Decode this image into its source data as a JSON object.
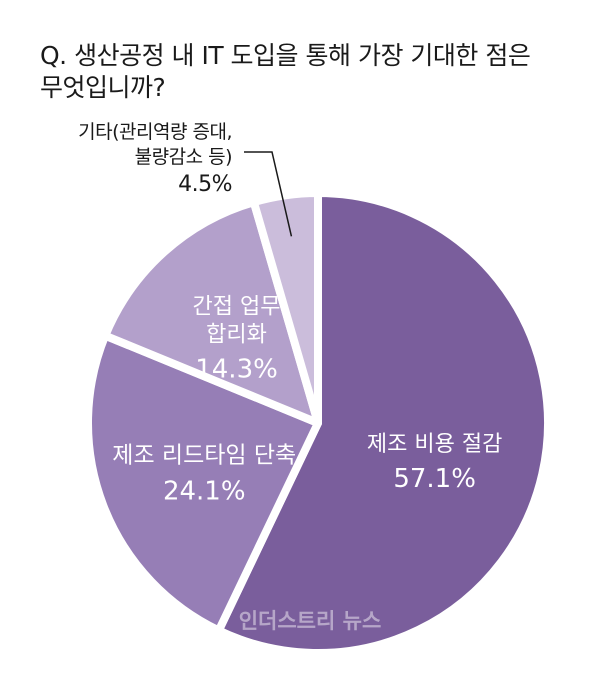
{
  "question": {
    "line1": "Q. 생산공정 내 IT 도입을 통해 가장 기대한 점은",
    "line2": "무엇입니까?"
  },
  "watermark": "인더스트리 뉴스",
  "colors": {
    "background": "#ffffff",
    "slice_dark": "#7a5e9c",
    "slice_medium": "#967eb6",
    "slice_light": "#b3a0cb",
    "slice_lightest": "#cbbddb",
    "label_on_slice": "#ffffff",
    "label_outside": "#1a1a1a"
  },
  "chart_data": {
    "type": "pie",
    "title": "Q. 생산공정 내 IT 도입을 통해 가장 기대한 점은 무엇입니까?",
    "unit": "%",
    "start": "12 o'clock, clockwise",
    "slices": [
      {
        "label_lines": [
          "제조 비용 절감"
        ],
        "value": 57.1,
        "display": "57.1%",
        "color": "#7a5e9c"
      },
      {
        "label_lines": [
          "제조 리드타임 단축"
        ],
        "value": 24.1,
        "display": "24.1%",
        "color": "#967eb6"
      },
      {
        "label_lines": [
          "간접 업무",
          "합리화"
        ],
        "value": 14.3,
        "display": "14.3%",
        "color": "#b3a0cb"
      },
      {
        "label_lines": [
          "기타(관리역량 증대,",
          "불량감소 등)"
        ],
        "value": 4.5,
        "display": "4.5%",
        "color": "#cbbddb"
      }
    ]
  }
}
